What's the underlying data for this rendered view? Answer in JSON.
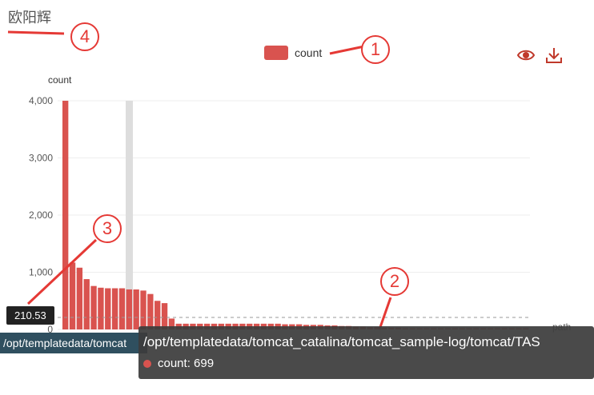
{
  "title": "欧阳辉",
  "legend": {
    "label": "count",
    "color": "#d9534f"
  },
  "toolbar": {
    "eye_icon": "eye-icon",
    "download_icon": "download-icon"
  },
  "y_axis_label": "count",
  "x_axis_label": "path",
  "y_ticks": [
    "4,000",
    "3,000",
    "2,000",
    "1,000",
    "0"
  ],
  "value_badge": "210.53",
  "path_bar_text": "/opt/templatedata/tomcat",
  "tooltip": {
    "path": "/opt/templatedata/tomcat_catalina/tomcat_sample-log/tomcat/TAS",
    "count_label": "count: 699"
  },
  "markers": [
    "1",
    "2",
    "3",
    "4"
  ],
  "chart_data": {
    "type": "bar",
    "title": "",
    "xlabel": "path",
    "ylabel": "count",
    "ylim": [
      0,
      4000
    ],
    "reference_line": 210.53,
    "values": [
      4000,
      1170,
      1080,
      880,
      760,
      730,
      720,
      720,
      720,
      700,
      699,
      680,
      620,
      500,
      460,
      190,
      100,
      100,
      100,
      100,
      100,
      100,
      100,
      100,
      100,
      100,
      100,
      100,
      100,
      100,
      100,
      90,
      90,
      90,
      80,
      80,
      80,
      70,
      70,
      60,
      60,
      50,
      50,
      40,
      40,
      30,
      30,
      30,
      20,
      20,
      20,
      20,
      20,
      20,
      20,
      20,
      20,
      20,
      20,
      20,
      20,
      20,
      20,
      20,
      20,
      20
    ]
  }
}
